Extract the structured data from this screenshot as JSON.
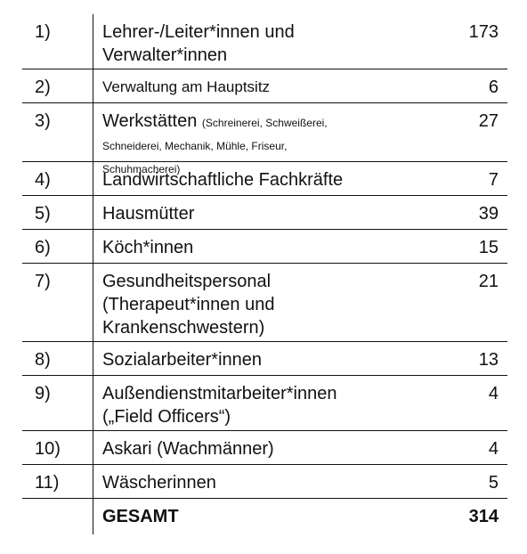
{
  "rows": [
    {
      "num": "1)",
      "label": "Lehrer-/Leiter*innen und Verwalter*innen",
      "value": "173"
    },
    {
      "num": "2)",
      "label": "Verwaltung am Hauptsitz",
      "value": "6"
    },
    {
      "num": "3)",
      "label": "Werkstätten",
      "label_detail": "(Schreinerei, Schweißerei, Schneiderei, Mechanik, Mühle, Friseur, Schuhmacherei)",
      "value": "27"
    },
    {
      "num": "4)",
      "label": "Landwirtschaftliche Fachkräfte",
      "value": "7"
    },
    {
      "num": "5)",
      "label": "Hausmütter",
      "value": "39"
    },
    {
      "num": "6)",
      "label": "Köch*innen",
      "value": "15"
    },
    {
      "num": "7)",
      "label": "Gesundheitspersonal (Therapeut*innen und Krankenschwestern)",
      "value": "21"
    },
    {
      "num": "8)",
      "label": "Sozialarbeiter*innen",
      "value": "13"
    },
    {
      "num": "9)",
      "label": "Außendienstmitarbeiter*innen („Field Officers“)",
      "value": "4"
    },
    {
      "num": "10)",
      "label": "Askari (Wachmänner)",
      "value": "4"
    },
    {
      "num": "11)",
      "label": "Wäscherinnen",
      "value": "5"
    }
  ],
  "total": {
    "label": "GESAMT",
    "value": "314"
  }
}
